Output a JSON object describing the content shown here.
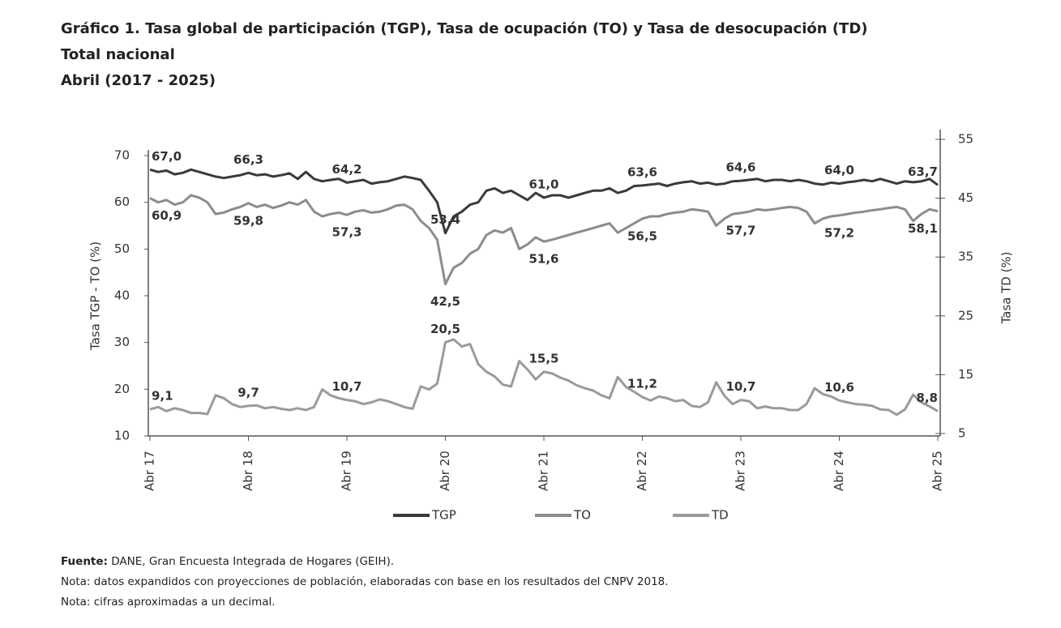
{
  "chart_data": {
    "type": "line",
    "title": "Gráfico 1. Tasa global de participación (TGP), Tasa de ocupación (TO) y Tasa de desocupación (TD)",
    "subtitle": [
      "Total nacional",
      "Abril (2017 - 2025)"
    ],
    "ylabel": "Tasa TGP - TO (%)",
    "y2label": "Tasa TD (%)",
    "ylim": [
      10,
      70
    ],
    "yticks": [
      10,
      20,
      30,
      40,
      50,
      60,
      70
    ],
    "y2lim": [
      5,
      55
    ],
    "y2ticks": [
      5,
      15,
      25,
      35,
      45,
      55
    ],
    "legend": "bottom",
    "categories": [
      "Abr 17",
      null,
      null,
      null,
      null,
      null,
      null,
      null,
      null,
      null,
      null,
      null,
      "Abr 18",
      null,
      null,
      null,
      null,
      null,
      null,
      null,
      null,
      null,
      null,
      null,
      "Abr 19",
      null,
      null,
      null,
      null,
      null,
      null,
      null,
      null,
      null,
      null,
      null,
      "Abr 20",
      null,
      null,
      null,
      null,
      null,
      null,
      null,
      null,
      null,
      null,
      null,
      "Abr 21",
      null,
      null,
      null,
      null,
      null,
      null,
      null,
      null,
      null,
      null,
      null,
      "Abr 22",
      null,
      null,
      null,
      null,
      null,
      null,
      null,
      null,
      null,
      null,
      null,
      "Abr 23",
      null,
      null,
      null,
      null,
      null,
      null,
      null,
      null,
      null,
      null,
      null,
      "Abr 24",
      null,
      null,
      null,
      null,
      null,
      null,
      null,
      null,
      null,
      null,
      null,
      "Abr 25"
    ],
    "series": [
      {
        "name": "TGP",
        "color": "#3a3a3a",
        "axis": "y",
        "values": [
          67.0,
          66.5,
          66.8,
          66.0,
          66.3,
          67.0,
          66.5,
          66.0,
          65.5,
          65.2,
          65.5,
          65.8,
          66.3,
          65.8,
          66.0,
          65.5,
          65.8,
          66.2,
          65.0,
          66.5,
          65.0,
          64.5,
          64.8,
          65.0,
          64.2,
          64.5,
          64.8,
          64.0,
          64.3,
          64.5,
          65.0,
          65.5,
          65.2,
          64.8,
          62.5,
          60.0,
          53.4,
          57.0,
          58.0,
          59.5,
          60.0,
          62.5,
          63.0,
          62.0,
          62.5,
          61.5,
          60.5,
          62.0,
          61.0,
          61.5,
          61.5,
          61.0,
          61.5,
          62.0,
          62.5,
          62.5,
          63.0,
          62.0,
          62.5,
          63.5,
          63.6,
          63.8,
          64.0,
          63.5,
          64.0,
          64.3,
          64.5,
          64.0,
          64.2,
          63.8,
          64.0,
          64.5,
          64.6,
          64.8,
          65.0,
          64.5,
          64.8,
          64.8,
          64.5,
          64.8,
          64.5,
          64.0,
          63.8,
          64.2,
          64.0,
          64.3,
          64.5,
          64.8,
          64.5,
          65.0,
          64.5,
          64.0,
          64.5,
          64.3,
          64.5,
          65.0,
          63.7
        ],
        "value_labels": [
          "67,0",
          null,
          null,
          null,
          null,
          null,
          null,
          null,
          null,
          null,
          null,
          null,
          "66,3",
          null,
          null,
          null,
          null,
          null,
          null,
          null,
          null,
          null,
          null,
          null,
          "64,2",
          null,
          null,
          null,
          null,
          null,
          null,
          null,
          null,
          null,
          null,
          null,
          "53,4",
          null,
          null,
          null,
          null,
          null,
          null,
          null,
          null,
          null,
          null,
          null,
          "61,0",
          null,
          null,
          null,
          null,
          null,
          null,
          null,
          null,
          null,
          null,
          null,
          "63,6",
          null,
          null,
          null,
          null,
          null,
          null,
          null,
          null,
          null,
          null,
          null,
          "64,6",
          null,
          null,
          null,
          null,
          null,
          null,
          null,
          null,
          null,
          null,
          null,
          "64,0",
          null,
          null,
          null,
          null,
          null,
          null,
          null,
          null,
          null,
          null,
          null,
          "63,7"
        ]
      },
      {
        "name": "TO",
        "color": "#8c8c8c",
        "axis": "y",
        "values": [
          60.9,
          60.0,
          60.5,
          59.5,
          60.0,
          61.5,
          61.0,
          60.0,
          57.5,
          57.8,
          58.5,
          59.0,
          59.8,
          59.0,
          59.5,
          58.8,
          59.3,
          60.0,
          59.5,
          60.5,
          58.0,
          57.0,
          57.5,
          57.8,
          57.3,
          58.0,
          58.3,
          57.8,
          58.0,
          58.5,
          59.3,
          59.5,
          58.5,
          56.0,
          54.5,
          52.0,
          42.5,
          46.0,
          47.0,
          49.0,
          50.0,
          53.0,
          54.0,
          53.5,
          54.5,
          50.0,
          51.0,
          52.5,
          51.6,
          52.0,
          52.5,
          53.0,
          53.5,
          54.0,
          54.5,
          55.0,
          55.5,
          53.5,
          54.5,
          55.5,
          56.5,
          57.0,
          57.0,
          57.5,
          57.8,
          58.0,
          58.5,
          58.3,
          58.0,
          55.0,
          56.5,
          57.5,
          57.7,
          58.0,
          58.5,
          58.3,
          58.5,
          58.8,
          59.0,
          58.8,
          58.0,
          55.5,
          56.5,
          57.0,
          57.2,
          57.5,
          57.8,
          58.0,
          58.3,
          58.5,
          58.8,
          59.0,
          58.5,
          56.0,
          57.5,
          58.5,
          58.1
        ],
        "value_labels": [
          "60,9",
          null,
          null,
          null,
          null,
          null,
          null,
          null,
          null,
          null,
          null,
          null,
          "59,8",
          null,
          null,
          null,
          null,
          null,
          null,
          null,
          null,
          null,
          null,
          null,
          "57,3",
          null,
          null,
          null,
          null,
          null,
          null,
          null,
          null,
          null,
          null,
          null,
          "42,5",
          null,
          null,
          null,
          null,
          null,
          null,
          null,
          null,
          null,
          null,
          null,
          "51,6",
          null,
          null,
          null,
          null,
          null,
          null,
          null,
          null,
          null,
          null,
          null,
          "56,5",
          null,
          null,
          null,
          null,
          null,
          null,
          null,
          null,
          null,
          null,
          null,
          "57,7",
          null,
          null,
          null,
          null,
          null,
          null,
          null,
          null,
          null,
          null,
          null,
          "57,2",
          null,
          null,
          null,
          null,
          null,
          null,
          null,
          null,
          null,
          null,
          null,
          "58,1"
        ]
      },
      {
        "name": "TD",
        "color": "#9a9a9a",
        "axis": "y2",
        "values": [
          9.1,
          9.5,
          8.8,
          9.3,
          9.0,
          8.5,
          8.5,
          8.3,
          11.5,
          11.0,
          10.0,
          9.5,
          9.7,
          9.8,
          9.3,
          9.5,
          9.2,
          9.0,
          9.3,
          9.0,
          9.5,
          12.5,
          11.5,
          11.0,
          10.7,
          10.5,
          10.0,
          10.3,
          10.8,
          10.5,
          10.0,
          9.5,
          9.2,
          13.0,
          12.5,
          13.5,
          20.5,
          21.0,
          19.8,
          20.2,
          16.8,
          15.5,
          14.7,
          13.3,
          13.0,
          17.3,
          15.9,
          14.2,
          15.5,
          15.2,
          14.5,
          14.0,
          13.2,
          12.7,
          12.3,
          11.5,
          11.0,
          14.6,
          12.9,
          12.1,
          11.2,
          10.6,
          11.3,
          11.0,
          10.5,
          10.7,
          9.7,
          9.5,
          10.3,
          13.7,
          11.4,
          10.0,
          10.7,
          10.5,
          9.3,
          9.6,
          9.3,
          9.3,
          9.0,
          9.0,
          10.0,
          12.7,
          11.7,
          11.3,
          10.6,
          10.3,
          10.0,
          9.9,
          9.7,
          9.1,
          9.0,
          8.2,
          9.1,
          11.6,
          10.3,
          9.6,
          8.8
        ],
        "value_labels": [
          "9,1",
          null,
          null,
          null,
          null,
          null,
          null,
          null,
          null,
          null,
          null,
          null,
          "9,7",
          null,
          null,
          null,
          null,
          null,
          null,
          null,
          null,
          null,
          null,
          null,
          "10,7",
          null,
          null,
          null,
          null,
          null,
          null,
          null,
          null,
          null,
          null,
          null,
          "20,5",
          null,
          null,
          null,
          null,
          null,
          null,
          null,
          null,
          null,
          null,
          null,
          "15,5",
          null,
          null,
          null,
          null,
          null,
          null,
          null,
          null,
          null,
          null,
          null,
          "11,2",
          null,
          null,
          null,
          null,
          null,
          null,
          null,
          null,
          null,
          null,
          null,
          "10,7",
          null,
          null,
          null,
          null,
          null,
          null,
          null,
          null,
          null,
          null,
          null,
          "10,6",
          null,
          null,
          null,
          null,
          null,
          null,
          null,
          null,
          null,
          null,
          null,
          "8,8"
        ]
      }
    ],
    "source_label": "Fuente:",
    "source": " DANE, Gran Encuesta Integrada de Hogares (GEIH).",
    "notes": [
      "Nota: datos expandidos con proyecciones de población, elaboradas con base en los resultados del CNPV 2018.",
      "Nota: cifras aproximadas a un decimal."
    ]
  }
}
